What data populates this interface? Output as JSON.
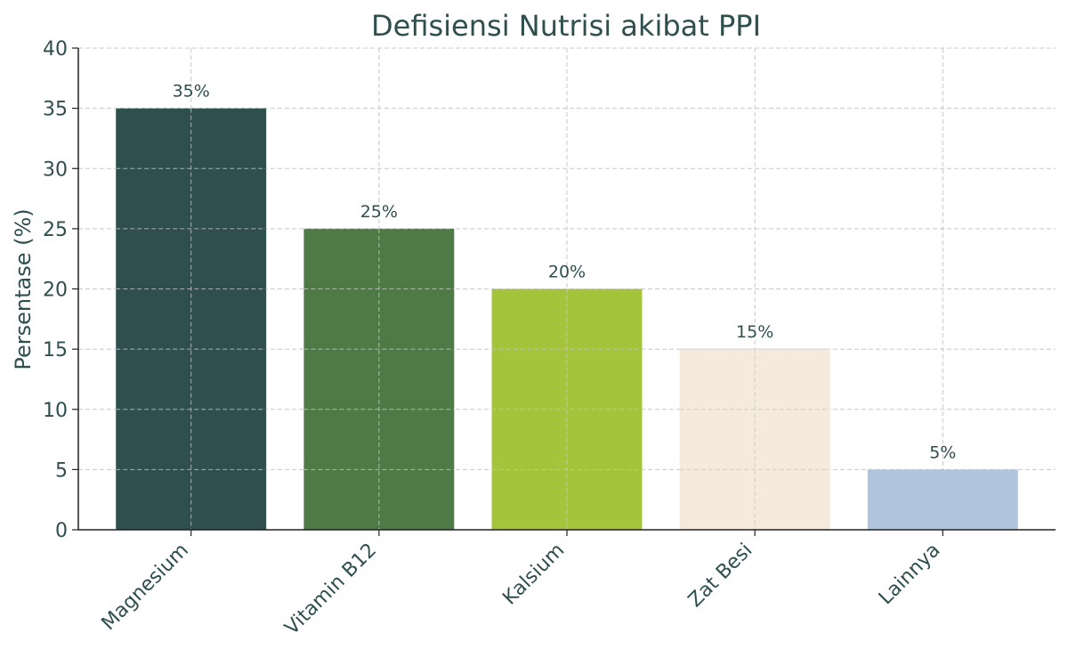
{
  "chart_data": {
    "type": "bar",
    "title": "Defisiensi Nutrisi akibat PPI",
    "xlabel": "",
    "ylabel": "Persentase (%)",
    "categories": [
      "Magnesium",
      "Vitamin B12",
      "Kalsium",
      "Zat Besi",
      "Lainnya"
    ],
    "values": [
      35,
      25,
      20,
      15,
      5
    ],
    "value_labels": [
      "35%",
      "25%",
      "20%",
      "15%",
      "5%"
    ],
    "bar_colors": [
      "#2F4F4F",
      "#4E7A45",
      "#A4C43C",
      "#F5EADB",
      "#B0C4DE"
    ],
    "ylim": [
      0,
      40
    ],
    "yticks": [
      0,
      5,
      10,
      15,
      20,
      25,
      30,
      35,
      40
    ],
    "grid": true,
    "text_color": "#2F4F4F",
    "grid_color": "#C8C8C8"
  }
}
